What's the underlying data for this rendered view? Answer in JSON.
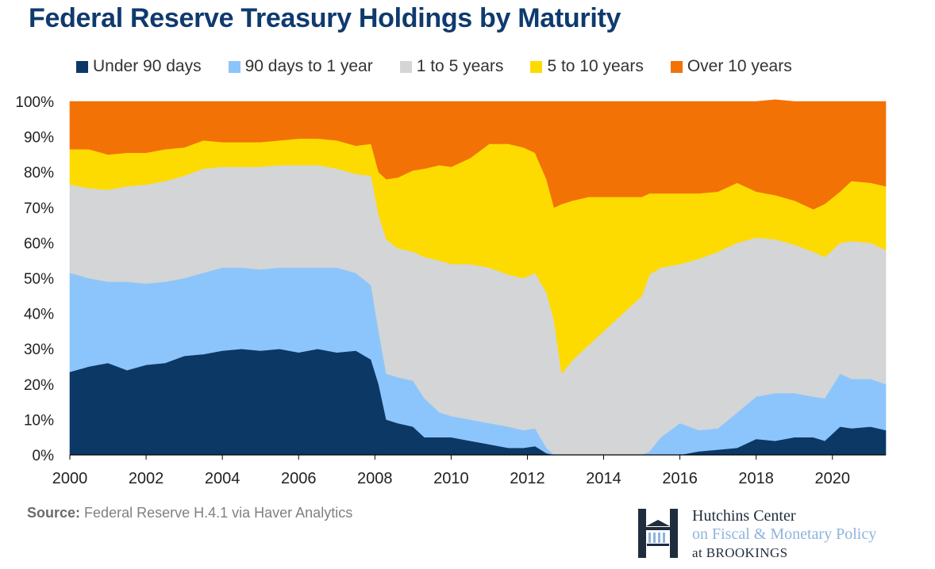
{
  "page": {
    "title": "Federal Reserve Treasury Holdings by Maturity",
    "source_label": "Source:",
    "source_text": "Federal Reserve H.4.1 via Haver Analytics"
  },
  "logo": {
    "line1": "Hutchins Center",
    "line2": "on Fiscal & Monetary Policy",
    "line3": "at BROOKINGS",
    "icon": "brookings-h-building-icon",
    "colors": {
      "dark": "#1f2d3d",
      "light": "#8fb4dc"
    }
  },
  "legend": [
    {
      "label": "Under 90 days",
      "color": "#0c3866"
    },
    {
      "label": "90 days to 1 year",
      "color": "#8cc5fb"
    },
    {
      "label": "1 to 5 years",
      "color": "#d3d5d6"
    },
    {
      "label": "5 to 10 years",
      "color": "#fedb00"
    },
    {
      "label": "Over 10 years",
      "color": "#f27206"
    }
  ],
  "chart_data": {
    "type": "area",
    "stacked": true,
    "title": "Federal Reserve Treasury Holdings by Maturity",
    "xlabel": "",
    "ylabel": "",
    "xlim": [
      2000,
      2021.4
    ],
    "ylim": [
      0,
      100
    ],
    "x_ticks": [
      2000,
      2002,
      2004,
      2006,
      2008,
      2010,
      2012,
      2014,
      2016,
      2018,
      2020
    ],
    "x_tick_labels": [
      "2000",
      "2002",
      "2004",
      "2006",
      "2008",
      "2010",
      "2012",
      "2014",
      "2016",
      "2018",
      "2020"
    ],
    "y_ticks": [
      0,
      10,
      20,
      30,
      40,
      50,
      60,
      70,
      80,
      90,
      100
    ],
    "y_tick_labels": [
      "0%",
      "10%",
      "20%",
      "30%",
      "40%",
      "50%",
      "60%",
      "70%",
      "80%",
      "90%",
      "100%"
    ],
    "grid": false,
    "legend_position": "top",
    "x": [
      2000,
      2000.5,
      2001,
      2001.5,
      2002,
      2002.5,
      2003,
      2003.5,
      2004,
      2004.5,
      2005,
      2005.5,
      2006,
      2006.5,
      2007,
      2007.5,
      2007.9,
      2008.1,
      2008.3,
      2008.6,
      2009,
      2009.3,
      2009.7,
      2010,
      2010.5,
      2011,
      2011.5,
      2011.9,
      2012.2,
      2012.5,
      2012.7,
      2012.9,
      2013.2,
      2013.6,
      2014,
      2014.5,
      2015,
      2015.2,
      2015.5,
      2016,
      2016.5,
      2017,
      2017.5,
      2018,
      2018.5,
      2019,
      2019.5,
      2019.8,
      2020.2,
      2020.5,
      2021,
      2021.4
    ],
    "series": [
      {
        "name": "Under 90 days",
        "color": "#0c3866",
        "values": [
          23.5,
          25,
          26,
          24,
          25.5,
          26,
          28,
          28.5,
          29.5,
          30,
          29.5,
          30,
          29,
          30,
          29,
          29.5,
          27,
          20,
          10,
          9,
          8,
          5,
          5,
          5,
          4,
          3,
          2,
          2,
          2.5,
          0.5,
          0,
          0,
          0,
          0,
          0,
          0,
          0,
          0,
          0,
          0,
          1,
          1.5,
          2,
          4.5,
          4,
          5,
          5,
          4,
          8,
          7.5,
          8,
          7
        ]
      },
      {
        "name": "90 days to 1 year",
        "color": "#8cc5fb",
        "values": [
          28,
          25,
          23,
          25,
          23,
          23,
          22,
          23,
          23.5,
          23,
          23,
          23,
          24,
          23,
          24,
          22,
          21,
          15,
          13,
          13,
          13,
          11,
          7,
          6,
          6,
          6,
          6,
          5,
          5,
          1.5,
          0,
          0,
          0,
          0,
          0,
          0,
          0,
          1,
          5,
          9,
          6,
          6,
          10,
          12,
          13.5,
          12.5,
          11.5,
          12,
          15,
          14,
          13.5,
          13
        ]
      },
      {
        "name": "1 to 5 years",
        "color": "#d3d5d6",
        "values": [
          25,
          25.5,
          26,
          27,
          28,
          28.5,
          29,
          29.5,
          28.5,
          28.5,
          29,
          29,
          29,
          29,
          28,
          28,
          31,
          33,
          38,
          36.5,
          36.5,
          40,
          43,
          43,
          44,
          44,
          43,
          43,
          44,
          44,
          38,
          23,
          27,
          31,
          35,
          40,
          45,
          50,
          48,
          45,
          48.5,
          50,
          48,
          45,
          43.5,
          42,
          41,
          40,
          37,
          39,
          38.5,
          38
        ]
      },
      {
        "name": "5 to 10 years",
        "color": "#fedb00",
        "values": [
          10,
          11,
          10,
          9.5,
          9,
          9,
          8,
          8,
          7,
          7,
          7,
          7,
          7.5,
          7.5,
          8,
          8,
          9,
          12,
          17,
          20,
          23,
          25,
          27,
          27.5,
          30,
          35,
          37,
          37,
          34,
          32,
          32,
          48,
          45,
          42,
          38,
          33,
          28,
          23,
          21,
          20,
          18.5,
          17,
          17,
          13,
          12.5,
          12.5,
          12,
          15,
          14.5,
          17,
          17,
          18
        ]
      },
      {
        "name": "Over 10 years",
        "color": "#f27206",
        "values": [
          13.5,
          13.5,
          15,
          14.5,
          14.5,
          13.5,
          13,
          11,
          11.5,
          11.5,
          11.5,
          11,
          10.5,
          10.5,
          11,
          12.5,
          12,
          20,
          22,
          21.5,
          19.5,
          19,
          18,
          18.5,
          16,
          12,
          12,
          13,
          14.5,
          22,
          30,
          29,
          28,
          27,
          27,
          27,
          27,
          26,
          26,
          26,
          26,
          25.5,
          23,
          25.5,
          27,
          28,
          30.5,
          29,
          25.5,
          22.5,
          23,
          24
        ]
      }
    ]
  }
}
